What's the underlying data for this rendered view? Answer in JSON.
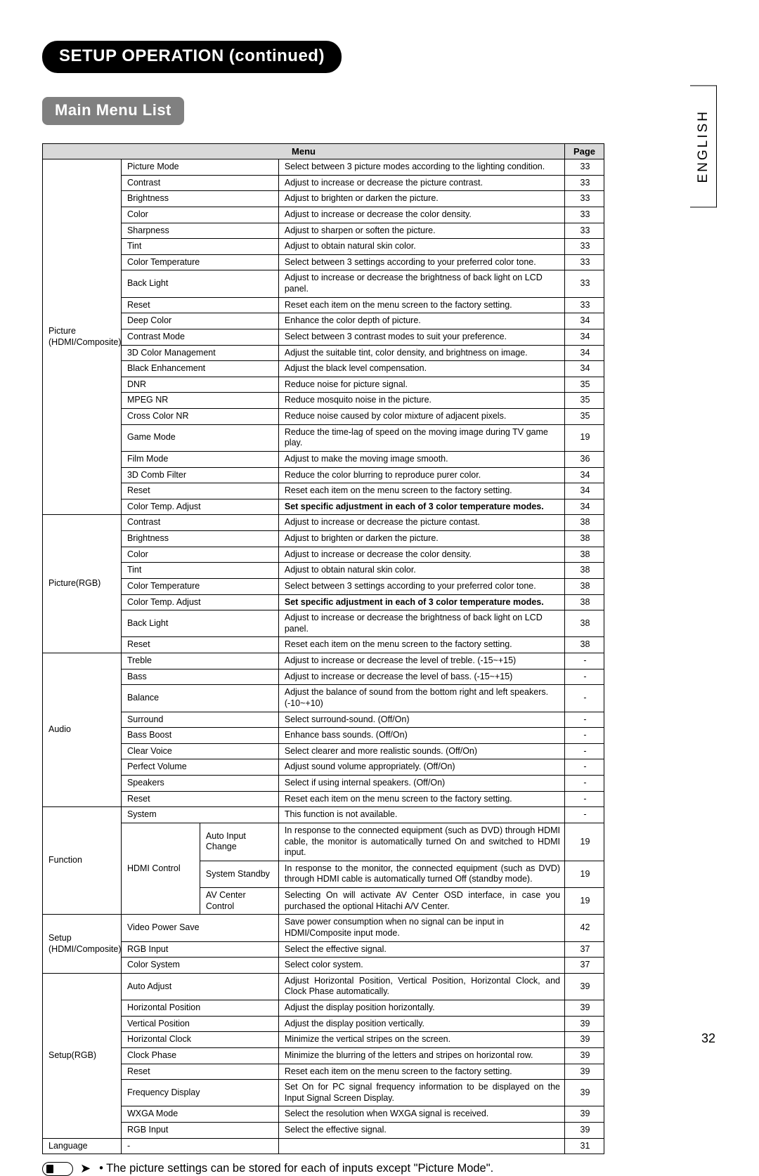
{
  "title_pill": "SETUP OPERATION (continued)",
  "section_pill": "Main Menu List",
  "language_tab": "ENGLISH",
  "table_headers": {
    "menu": "Menu",
    "page": "Page"
  },
  "footnote": "• The picture settings can be stored for each of inputs except \"Picture Mode\".",
  "page_number": "32",
  "categories": [
    {
      "name": "Picture\n(HDMI/Composite)",
      "rows": [
        {
          "item": "Picture Mode",
          "desc": "Select between 3 picture modes according to the lighting condition.",
          "page": "33"
        },
        {
          "item": "Contrast",
          "desc": "Adjust to increase or decrease the picture contrast.",
          "page": "33"
        },
        {
          "item": "Brightness",
          "desc": "Adjust to brighten or darken the picture.",
          "page": "33"
        },
        {
          "item": "Color",
          "desc": "Adjust to increase or decrease the color density.",
          "page": "33"
        },
        {
          "item": "Sharpness",
          "desc": "Adjust to sharpen or soften the picture.",
          "page": "33"
        },
        {
          "item": "Tint",
          "desc": "Adjust to obtain natural skin color.",
          "page": "33"
        },
        {
          "item": "Color Temperature",
          "desc": "Select between 3 settings according to your preferred color tone.",
          "page": "33"
        },
        {
          "item": "Back Light",
          "desc": "Adjust to increase or decrease the brightness of back light on LCD panel.",
          "page": "33"
        },
        {
          "item": "Reset",
          "desc": "Reset each item on the menu screen to the factory setting.",
          "page": "33"
        },
        {
          "item": "Deep Color",
          "desc": "Enhance the color depth of picture.",
          "page": "34"
        },
        {
          "item": "Contrast Mode",
          "desc": "Select between 3 contrast modes to suit your preference.",
          "page": "34"
        },
        {
          "item": "3D Color Management",
          "desc": "Adjust the suitable tint, color density, and brightness on image.",
          "page": "34"
        },
        {
          "item": "Black Enhancement",
          "desc": "Adjust the black level compensation.",
          "page": "34"
        },
        {
          "item": "DNR",
          "desc": "Reduce noise for picture signal.",
          "page": "35"
        },
        {
          "item": "MPEG NR",
          "desc": "Reduce mosquito noise in the picture.",
          "page": "35"
        },
        {
          "item": "Cross Color NR",
          "desc": "Reduce noise caused by color mixture of adjacent pixels.",
          "page": "35"
        },
        {
          "item": "Game Mode",
          "desc": "Reduce the time-lag of speed on the moving image during TV game play.",
          "page": "19"
        },
        {
          "item": "Film Mode",
          "desc": "Adjust to make the moving image smooth.",
          "page": "36"
        },
        {
          "item": "3D Comb Filter",
          "desc": "Reduce the color blurring to reproduce purer color.",
          "page": "34"
        },
        {
          "item": "Reset",
          "desc": "Reset each item on the menu screen to the factory setting.",
          "page": "34"
        },
        {
          "item": "Color Temp. Adjust",
          "desc": "Set speciﬁc adjustment in each of 3 color temperature modes.",
          "page": "34",
          "bold": true
        }
      ]
    },
    {
      "name": "Picture(RGB)",
      "rows": [
        {
          "item": "Contrast",
          "desc": "Adjust to increase or decrease the picture contast.",
          "page": "38"
        },
        {
          "item": "Brightness",
          "desc": "Adjust to brighten or darken the picture.",
          "page": "38"
        },
        {
          "item": "Color",
          "desc": "Adjust to increase or decrease the color density.",
          "page": "38"
        },
        {
          "item": "Tint",
          "desc": "Adjust to obtain natural skin color.",
          "page": "38"
        },
        {
          "item": "Color Temperature",
          "desc": "Select between 3 settings according to your preferred color tone.",
          "page": "38"
        },
        {
          "item": "Color Temp. Adjust",
          "desc": "Set speciﬁc adjustment in each of 3 color temperature modes.",
          "page": "38",
          "bold": true
        },
        {
          "item": "Back Light",
          "desc": "Adjust to increase or decrease the brightness of back light on LCD panel.",
          "page": "38"
        },
        {
          "item": "Reset",
          "desc": "Reset each item on the menu screen to the factory setting.",
          "page": "38"
        }
      ]
    },
    {
      "name": "Audio",
      "rows": [
        {
          "item": "Treble",
          "desc": "Adjust to increase or decrease the level of treble. (-15~+15)",
          "page": "-"
        },
        {
          "item": "Bass",
          "desc": "Adjust to increase or decrease the level of bass. (-15~+15)",
          "page": "-"
        },
        {
          "item": "Balance",
          "desc": "Adjust the balance of sound from the bottom right and left speakers. (-10~+10)",
          "page": "-"
        },
        {
          "item": "Surround",
          "desc": "Select surround-sound. (Off/On)",
          "page": "-"
        },
        {
          "item": "Bass Boost",
          "desc": "Enhance bass sounds. (Off/On)",
          "page": "-"
        },
        {
          "item": "Clear Voice",
          "desc": "Select clearer and more realistic sounds. (Off/On)",
          "page": "-"
        },
        {
          "item": "Perfect Volume",
          "desc": "Adjust sound volume appropriately. (Off/On)",
          "page": "-"
        },
        {
          "item": "Speakers",
          "desc": "Select if using internal speakers. (Off/On)",
          "page": "-"
        },
        {
          "item": "Reset",
          "desc": "Reset each item on the menu screen to the factory setting.",
          "page": "-"
        }
      ]
    },
    {
      "name": "Function",
      "rows": [
        {
          "item": "System",
          "desc": "This function is not available.",
          "page": "-"
        },
        {
          "item": "HDMI Control",
          "sub": "Auto Input Change",
          "desc": "In response to the connected equipment (such as DVD) through HDMI cable, the monitor is automatically turned On and switched to HDMI input.",
          "page": "19",
          "justify": true
        },
        {
          "sub": "System Standby",
          "desc": "In response to the monitor, the connected equipment (such as DVD) through HDMI cable is automatically turned Off (standby mode).",
          "page": "19",
          "justify": true
        },
        {
          "sub": "AV Center Control",
          "desc": "Selecting On will activate AV Center OSD interface, in case you purchased the optional Hitachi A/V Center.",
          "page": "19",
          "justify": true
        }
      ]
    },
    {
      "name": "Setup\n(HDMI/Composite)",
      "rows": [
        {
          "item": "Video Power Save",
          "desc": "Save power consumption when no signal can be input in HDMI/Composite input mode.",
          "page": "42"
        },
        {
          "item": "RGB Input",
          "desc": "Select the effective signal.",
          "page": "37"
        },
        {
          "item": "Color System",
          "desc": "Select color system.",
          "page": "37"
        }
      ]
    },
    {
      "name": "Setup(RGB)",
      "rows": [
        {
          "item": "Auto Adjust",
          "desc": "Adjust Horizontal Position, Vertical Position, Horizontal Clock, and Clock Phase automatically.",
          "page": "39",
          "justify": true
        },
        {
          "item": "Horizontal Position",
          "desc": "Adjust the display position horizontally.",
          "page": "39"
        },
        {
          "item": "Vertical Position",
          "desc": "Adjust the display position vertically.",
          "page": "39"
        },
        {
          "item": "Horizontal Clock",
          "desc": "Minimize the vertical stripes on the screen.",
          "page": "39"
        },
        {
          "item": "Clock Phase",
          "desc": "Minimize the blurring of the letters and stripes on horizontal row.",
          "page": "39"
        },
        {
          "item": "Reset",
          "desc": "Reset each item on the menu screen to the factory setting.",
          "page": "39"
        },
        {
          "item": "Frequency Display",
          "desc": "Set On for PC signal frequency information to be displayed on the Input Signal Screen Display.",
          "page": "39",
          "justify": true
        },
        {
          "item": "WXGA Mode",
          "desc": "Select the resolution when WXGA signal is received.",
          "page": "39"
        },
        {
          "item": "RGB Input",
          "desc": "Select the effective signal.",
          "page": "39"
        }
      ]
    },
    {
      "name": "Language",
      "rows": [
        {
          "item": "-",
          "desc": "",
          "page": "31"
        }
      ]
    }
  ]
}
